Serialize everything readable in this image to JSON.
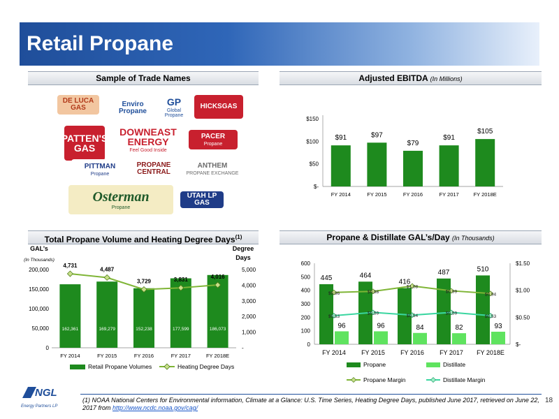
{
  "header": {
    "title": "Retail Propane"
  },
  "panels": {
    "trade_names": {
      "title": "Sample of Trade Names"
    },
    "ebitda": {
      "title": "Adjusted EBITDA",
      "subtitle": "(In Millions)"
    },
    "volume": {
      "title": "Total Propane Volume and Heating Degree Days",
      "sup": "(1)"
    },
    "gals_day": {
      "title": "Propane & Distillate GAL’s/Day",
      "subtitle": "(In Thousands)"
    }
  },
  "logos": [
    {
      "text": "DE LUCA GAS",
      "bg": "#f2c6a0",
      "fg": "#b23a1a"
    },
    {
      "text": "Enviro Propane",
      "bg": "#ffffff",
      "fg": "#1f4e9a"
    },
    {
      "text": "GP",
      "sub": "Global Propane",
      "bg": "#ffffff",
      "fg": "#1f4e9a"
    },
    {
      "text": "HICKSGAS",
      "bg": "#c8202e",
      "fg": "#ffffff"
    },
    {
      "text": "PATTEN'S GAS",
      "bg": "#c8202e",
      "fg": "#ffffff"
    },
    {
      "text": "DOWNEAST ENERGY",
      "sub": "Feel Good Inside",
      "bg": "#ffffff",
      "fg": "#c8202e"
    },
    {
      "text": "PACER",
      "sub": "Propane",
      "bg": "#c8202e",
      "fg": "#ffffff"
    },
    {
      "text": "PITTMAN",
      "sub": "Propane",
      "bg": "#ffffff",
      "fg": "#1f3c88"
    },
    {
      "text": "PROPANE CENTRAL",
      "bg": "#ffffff",
      "fg": "#8b1a1a"
    },
    {
      "text": "ANTHEM",
      "sub": "PROPANE EXCHANGE",
      "bg": "#ffffff",
      "fg": "#6b6b6b"
    },
    {
      "text": "Osterman",
      "sub": "Propane",
      "bg": "#f4ecc4",
      "fg": "#1f5a2a"
    },
    {
      "text": "UTAH LP GAS",
      "bg": "#1f3c88",
      "fg": "#ffffff"
    }
  ],
  "chart_data": [
    {
      "type": "bar",
      "title": "Adjusted EBITDA",
      "subtitle": "(In Millions)",
      "categories": [
        "FY 2014",
        "FY 2015",
        "FY 2016",
        "FY 2017",
        "FY 2018E"
      ],
      "values": [
        91,
        97,
        79,
        91,
        105
      ],
      "value_labels": [
        "$91",
        "$97",
        "$79",
        "$91",
        "$105"
      ],
      "yticks": [
        "$-",
        "$50",
        "$100",
        "$150"
      ],
      "ylim": [
        0,
        150
      ],
      "color": "#1e8a1e"
    },
    {
      "type": "bar",
      "title": "Total Propane Volume and Heating Degree Days",
      "categories": [
        "FY 2014",
        "FY 2015",
        "FY 2016",
        "FY 2017",
        "FY 2018E"
      ],
      "left_axis_title": "GAL’s",
      "left_axis_sub": "(In Thousands)",
      "right_axis_title": "Degree Days",
      "yticks_left": [
        "0",
        "50,000",
        "100,000",
        "150,000",
        "200,000"
      ],
      "ylim_left": [
        0,
        200000
      ],
      "yticks_right": [
        "-",
        "1,000",
        "2,000",
        "3,000",
        "4,000",
        "5,000"
      ],
      "ylim_right": [
        0,
        5000
      ],
      "series": [
        {
          "name": "Retail Propane Volumes",
          "kind": "bar",
          "axis": "left",
          "values": [
            162361,
            169279,
            152238,
            177599,
            186073
          ],
          "labels": [
            "162,361",
            "169,279",
            "152,238",
            "177,599",
            "186,073"
          ],
          "color": "#1e8a1e"
        },
        {
          "name": "Heating Degree Days",
          "kind": "line",
          "axis": "right",
          "values": [
            4731,
            4487,
            3729,
            3831,
            4016
          ],
          "labels": [
            "4,731",
            "4,487",
            "3,729",
            "3,831",
            "4,016"
          ],
          "color": "#7fb536"
        }
      ]
    },
    {
      "type": "bar",
      "title": "Propane & Distillate GAL’s/Day",
      "categories": [
        "FY 2014",
        "FY 2015",
        "FY 2016",
        "FY 2017",
        "FY 2018E"
      ],
      "yticks_left": [
        "0",
        "100",
        "200",
        "300",
        "400",
        "500",
        "600"
      ],
      "ylim_left": [
        0,
        600
      ],
      "yticks_right": [
        "$-",
        "$0.50",
        "$1.00",
        "$1.50"
      ],
      "ylim_right": [
        0,
        1.5
      ],
      "series": [
        {
          "name": "Propane",
          "kind": "bar",
          "axis": "left",
          "values": [
            445,
            464,
            416,
            487,
            510
          ],
          "labels": [
            "445",
            "464",
            "416",
            "487",
            "510"
          ],
          "color": "#1e8a1e"
        },
        {
          "name": "Distillate",
          "kind": "bar",
          "axis": "left",
          "values": [
            96,
            96,
            84,
            82,
            93
          ],
          "labels": [
            "96",
            "96",
            "84",
            "82",
            "93"
          ],
          "color": "#5fe35f"
        },
        {
          "name": "Propane Margin",
          "kind": "line",
          "axis": "right",
          "values": [
            0.96,
            0.98,
            1.08,
            0.99,
            0.94
          ],
          "labels": [
            "$0.96",
            "$0.98",
            "$1.08",
            "$0.99",
            "$0.94"
          ],
          "color": "#7fb536"
        },
        {
          "name": "Distillate Margin",
          "kind": "line",
          "axis": "right",
          "values": [
            0.53,
            0.59,
            0.54,
            0.59,
            0.53
          ],
          "labels": [
            "$0.53",
            "$0.59",
            "$0.54",
            "$0.59",
            "$0.53"
          ],
          "color": "#3ad6a0"
        }
      ]
    }
  ],
  "footer": {
    "company": "NGL",
    "company_sub": "Energy Partners LP",
    "footnote": "(1) NOAA National Centers for Environmental information, Climate at a Glance: U.S. Time Series, Heating Degree Days, published June 2017, retrieved on June 22, 2017 from ",
    "link": "http://www.ncdc.noaa.gov/cag/",
    "page_number": "18"
  }
}
